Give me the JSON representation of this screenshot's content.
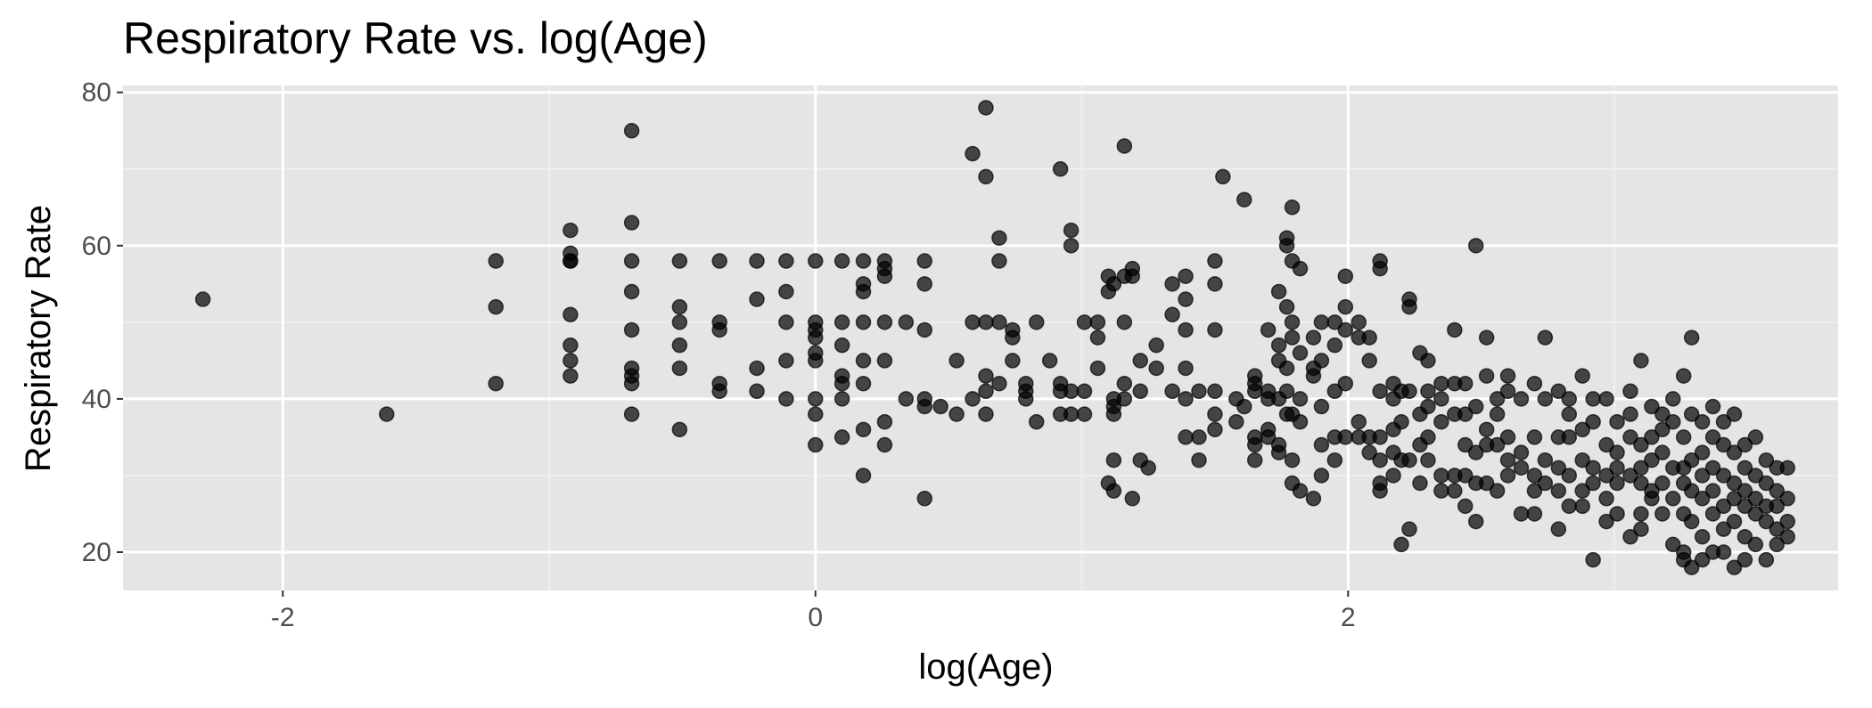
{
  "chart_data": {
    "type": "scatter",
    "title": "Respiratory Rate vs. log(Age)",
    "x_label": "log(Age)",
    "y_label": "Respiratory Rate",
    "xlim": [
      -2.6,
      3.84
    ],
    "ylim": [
      15,
      80.9
    ],
    "xticks": [
      -2,
      0,
      2
    ],
    "yticks": [
      20,
      40,
      60,
      80
    ],
    "x_minor": [
      -1,
      1,
      3
    ],
    "y_minor": [
      30,
      50,
      70
    ],
    "grid": true,
    "color": "#000000",
    "opacity": 0.7,
    "x": [
      -2.3,
      -1.61,
      -1.2,
      -1.2,
      -1.2,
      -0.92,
      -0.92,
      -0.92,
      -0.92,
      -0.92,
      -0.92,
      -0.92,
      -0.92,
      -0.69,
      -0.69,
      -0.69,
      -0.69,
      -0.69,
      -0.69,
      -0.69,
      -0.69,
      -0.69,
      -0.51,
      -0.51,
      -0.51,
      -0.51,
      -0.51,
      -0.51,
      -0.36,
      -0.36,
      -0.36,
      -0.36,
      -0.36,
      -0.22,
      -0.22,
      -0.22,
      -0.22,
      -0.11,
      -0.11,
      -0.11,
      -0.11,
      -0.11,
      0,
      0,
      0,
      0,
      0,
      0,
      0,
      0,
      0,
      0.1,
      0.1,
      0.1,
      0.1,
      0.1,
      0.1,
      0.1,
      0.18,
      0.18,
      0.18,
      0.18,
      0.18,
      0.18,
      0.18,
      0.18,
      0.26,
      0.26,
      0.26,
      0.26,
      0.26,
      0.26,
      0.26,
      0.34,
      0.34,
      0.41,
      0.41,
      0.41,
      0.41,
      0.41,
      0.41,
      0.47,
      0.53,
      0.53,
      0.59,
      0.59,
      0.59,
      0.64,
      0.64,
      0.64,
      0.64,
      0.64,
      0.64,
      0.69,
      0.69,
      0.69,
      0.69,
      0.74,
      0.74,
      0.74,
      0.79,
      0.79,
      0.79,
      0.83,
      0.83,
      0.88,
      0.92,
      0.92,
      0.92,
      0.92,
      0.96,
      0.96,
      0.96,
      0.96,
      1.01,
      1.01,
      1.01,
      1.06,
      1.06,
      1.06,
      1.1,
      1.1,
      1.1,
      1.12,
      1.12,
      1.12,
      1.12,
      1.12,
      1.12,
      1.16,
      1.16,
      1.16,
      1.16,
      1.16,
      1.19,
      1.19,
      1.19,
      1.22,
      1.22,
      1.22,
      1.25,
      1.28,
      1.28,
      1.34,
      1.34,
      1.34,
      1.39,
      1.39,
      1.39,
      1.39,
      1.39,
      1.39,
      1.44,
      1.44,
      1.44,
      1.5,
      1.5,
      1.5,
      1.5,
      1.5,
      1.5,
      1.53,
      1.58,
      1.58,
      1.61,
      1.61,
      1.65,
      1.65,
      1.65,
      1.65,
      1.65,
      1.65,
      1.7,
      1.7,
      1.7,
      1.7,
      1.7,
      1.74,
      1.74,
      1.74,
      1.74,
      1.74,
      1.74,
      1.77,
      1.77,
      1.77,
      1.77,
      1.77,
      1.77,
      1.79,
      1.79,
      1.79,
      1.79,
      1.79,
      1.79,
      1.79,
      1.82,
      1.82,
      1.82,
      1.82,
      1.82,
      1.87,
      1.87,
      1.87,
      1.87,
      1.9,
      1.9,
      1.9,
      1.9,
      1.9,
      1.95,
      1.95,
      1.95,
      1.95,
      1.95,
      1.99,
      1.99,
      1.99,
      1.99,
      1.99,
      2.04,
      2.04,
      2.04,
      2.04,
      2.08,
      2.08,
      2.08,
      2.08,
      2.12,
      2.12,
      2.12,
      2.12,
      2.12,
      2.12,
      2.12,
      2.17,
      2.17,
      2.17,
      2.17,
      2.17,
      2.2,
      2.2,
      2.2,
      2.2,
      2.23,
      2.23,
      2.23,
      2.23,
      2.23,
      2.27,
      2.27,
      2.27,
      2.27,
      2.3,
      2.3,
      2.3,
      2.3,
      2.3,
      2.35,
      2.35,
      2.35,
      2.35,
      2.35,
      2.4,
      2.4,
      2.4,
      2.4,
      2.4,
      2.44,
      2.44,
      2.44,
      2.44,
      2.44,
      2.48,
      2.48,
      2.48,
      2.48,
      2.48,
      2.52,
      2.52,
      2.52,
      2.52,
      2.52,
      2.56,
      2.56,
      2.56,
      2.56,
      2.6,
      2.6,
      2.6,
      2.6,
      2.6,
      2.65,
      2.65,
      2.65,
      2.65,
      2.7,
      2.7,
      2.7,
      2.7,
      2.7,
      2.74,
      2.74,
      2.74,
      2.74,
      2.79,
      2.79,
      2.79,
      2.79,
      2.79,
      2.83,
      2.83,
      2.83,
      2.83,
      2.83,
      2.88,
      2.88,
      2.88,
      2.88,
      2.88,
      2.92,
      2.92,
      2.92,
      2.92,
      2.92,
      2.97,
      2.97,
      2.97,
      2.97,
      2.97,
      3.01,
      3.01,
      3.01,
      3.01,
      3.01,
      3.06,
      3.06,
      3.06,
      3.06,
      3.06,
      3.1,
      3.1,
      3.1,
      3.1,
      3.1,
      3.1,
      3.14,
      3.14,
      3.14,
      3.14,
      3.14,
      3.18,
      3.18,
      3.18,
      3.18,
      3.18,
      3.22,
      3.22,
      3.22,
      3.22,
      3.22,
      3.26,
      3.26,
      3.26,
      3.26,
      3.26,
      3.26,
      3.26,
      3.29,
      3.29,
      3.29,
      3.29,
      3.29,
      3.29,
      3.33,
      3.33,
      3.33,
      3.33,
      3.33,
      3.33,
      3.37,
      3.37,
      3.37,
      3.37,
      3.37,
      3.37,
      3.41,
      3.41,
      3.41,
      3.41,
      3.41,
      3.41,
      3.45,
      3.45,
      3.45,
      3.45,
      3.45,
      3.45,
      3.49,
      3.49,
      3.49,
      3.49,
      3.49,
      3.49,
      3.53,
      3.53,
      3.53,
      3.53,
      3.53,
      3.57,
      3.57,
      3.57,
      3.57,
      3.57,
      3.61,
      3.61,
      3.61,
      3.61,
      3.61,
      3.65,
      3.65,
      3.65,
      3.65
    ],
    "values": [
      53,
      38,
      58,
      52,
      42,
      62,
      59,
      58,
      58,
      51,
      47,
      45,
      43,
      75,
      63,
      58,
      54,
      49,
      44,
      43,
      42,
      38,
      58,
      52,
      50,
      47,
      44,
      36,
      58,
      50,
      49,
      42,
      41,
      58,
      53,
      44,
      41,
      58,
      54,
      50,
      45,
      40,
      58,
      50,
      49,
      48,
      46,
      45,
      40,
      38,
      34,
      58,
      50,
      47,
      43,
      42,
      40,
      35,
      58,
      55,
      54,
      50,
      45,
      42,
      36,
      30,
      58,
      57,
      56,
      50,
      45,
      37,
      34,
      50,
      40,
      58,
      55,
      49,
      40,
      39,
      27,
      39,
      45,
      38,
      72,
      50,
      40,
      78,
      69,
      50,
      43,
      41,
      38,
      61,
      58,
      50,
      42,
      49,
      48,
      45,
      42,
      41,
      40,
      50,
      37,
      45,
      70,
      42,
      41,
      38,
      62,
      60,
      41,
      38,
      50,
      41,
      38,
      50,
      48,
      44,
      56,
      54,
      29,
      55,
      40,
      39,
      38,
      32,
      28,
      73,
      56,
      50,
      42,
      40,
      57,
      56,
      27,
      45,
      41,
      32,
      31,
      47,
      44,
      55,
      51,
      41,
      56,
      53,
      49,
      44,
      40,
      35,
      41,
      35,
      32,
      58,
      55,
      49,
      41,
      38,
      36,
      69,
      40,
      37,
      66,
      39,
      43,
      42,
      41,
      35,
      34,
      32,
      49,
      41,
      40,
      36,
      35,
      54,
      47,
      45,
      40,
      34,
      33,
      61,
      60,
      52,
      44,
      41,
      38,
      65,
      58,
      50,
      48,
      38,
      32,
      29,
      57,
      46,
      40,
      37,
      28,
      48,
      44,
      43,
      27,
      50,
      45,
      39,
      34,
      30,
      50,
      47,
      41,
      35,
      32,
      56,
      52,
      49,
      42,
      35,
      50,
      48,
      37,
      35,
      48,
      45,
      35,
      33,
      58,
      57,
      41,
      35,
      32,
      29,
      28,
      42,
      40,
      36,
      33,
      30,
      41,
      37,
      32,
      21,
      53,
      52,
      41,
      32,
      23,
      46,
      38,
      34,
      29,
      45,
      41,
      39,
      35,
      32,
      42,
      40,
      37,
      30,
      28,
      49,
      42,
      38,
      30,
      28,
      42,
      38,
      34,
      30,
      26,
      60,
      39,
      33,
      29,
      24,
      48,
      43,
      36,
      34,
      29,
      40,
      38,
      34,
      28,
      43,
      41,
      35,
      32,
      30,
      40,
      33,
      31,
      25,
      42,
      35,
      30,
      28,
      25,
      48,
      40,
      32,
      29,
      41,
      35,
      31,
      28,
      23,
      40,
      38,
      35,
      30,
      26,
      43,
      36,
      32,
      28,
      26,
      40,
      37,
      31,
      29,
      19,
      40,
      34,
      30,
      27,
      24,
      37,
      33,
      31,
      29,
      25,
      41,
      38,
      35,
      30,
      22,
      45,
      34,
      31,
      29,
      25,
      23,
      39,
      35,
      32,
      28,
      27,
      38,
      36,
      33,
      29,
      25,
      40,
      37,
      31,
      27,
      21,
      43,
      35,
      31,
      29,
      25,
      20,
      19,
      48,
      38,
      32,
      28,
      24,
      18,
      37,
      33,
      30,
      27,
      22,
      19,
      39,
      35,
      31,
      28,
      25,
      20,
      37,
      34,
      30,
      26,
      23,
      20,
      38,
      33,
      29,
      27,
      24,
      18,
      34,
      31,
      28,
      26,
      22,
      19,
      35,
      30,
      27,
      25,
      21,
      32,
      29,
      26,
      24,
      19,
      31,
      28,
      26,
      23,
      21,
      31,
      27,
      24,
      22
    ]
  }
}
